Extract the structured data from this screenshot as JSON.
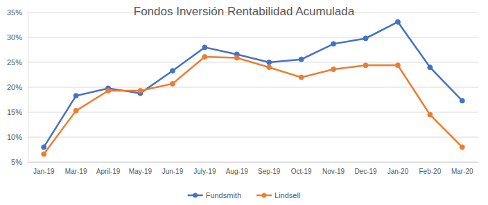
{
  "chart_data": {
    "type": "line",
    "title": "Fondos Inversión Rentabilidad Acumulada",
    "categories": [
      "Jan-19",
      "Mar-19",
      "April-19",
      "May-19",
      "Jun-19",
      "July-19",
      "Aug-19",
      "Sep-19",
      "Oct-19",
      "Nov-19",
      "Dec-19",
      "Jan-20",
      "Feb-20",
      "Mar-20"
    ],
    "series": [
      {
        "name": "Fundsmith",
        "color": "#4472c4",
        "marker": "circle",
        "values": [
          8.0,
          18.3,
          19.8,
          18.8,
          23.3,
          28.0,
          26.6,
          25.0,
          25.6,
          28.7,
          29.8,
          33.1,
          24.0,
          17.3
        ]
      },
      {
        "name": "Lindsell",
        "color": "#ed7d31",
        "marker": "circle",
        "values": [
          6.6,
          15.3,
          19.3,
          19.3,
          20.7,
          26.1,
          25.9,
          24.0,
          22.0,
          23.6,
          24.4,
          24.4,
          14.5,
          8.0
        ]
      }
    ],
    "ylim": [
      5,
      35
    ],
    "yticks": [
      {
        "value": 5,
        "label": "5%"
      },
      {
        "value": 10,
        "label": "10%"
      },
      {
        "value": 15,
        "label": "15%"
      },
      {
        "value": 20,
        "label": "20%"
      },
      {
        "value": 25,
        "label": "25%"
      },
      {
        "value": 30,
        "label": "30%"
      },
      {
        "value": 35,
        "label": "35%"
      }
    ],
    "grid": true,
    "legend": "bottom"
  }
}
